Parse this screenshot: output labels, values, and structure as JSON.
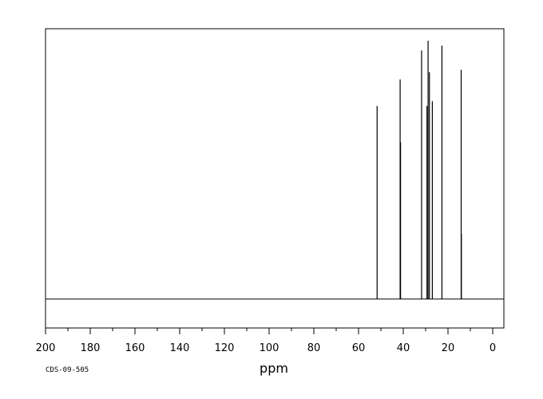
{
  "chart_data": {
    "type": "line",
    "title": "",
    "xlabel": "ppm",
    "ylabel": "",
    "xlim": [
      200,
      -5
    ],
    "ylim": [
      -0.12,
      1.12
    ],
    "x_reversed": true,
    "grid": false,
    "x_ticks": [
      200,
      180,
      160,
      140,
      120,
      100,
      80,
      60,
      40,
      20,
      0
    ],
    "x_tick_labels": [
      "200",
      "180",
      "160",
      "140",
      "120",
      "100",
      "80",
      "60",
      "40",
      "20",
      "0"
    ],
    "minor_tick_step": 10,
    "baseline": 0,
    "peaks": [
      {
        "x": 51.7,
        "y": 0.8
      },
      {
        "x": 41.4,
        "y": 0.91
      },
      {
        "x": 41.2,
        "y": 0.65
      },
      {
        "x": 31.8,
        "y": 1.03
      },
      {
        "x": 29.4,
        "y": 0.8
      },
      {
        "x": 28.9,
        "y": 1.07
      },
      {
        "x": 28.3,
        "y": 0.94
      },
      {
        "x": 27.0,
        "y": 0.82
      },
      {
        "x": 22.7,
        "y": 1.05
      },
      {
        "x": 14.1,
        "y": 0.95
      },
      {
        "x": 14.0,
        "y": 0.27
      }
    ],
    "color": "#000000"
  },
  "footer": {
    "code": "CDS-09-505"
  }
}
